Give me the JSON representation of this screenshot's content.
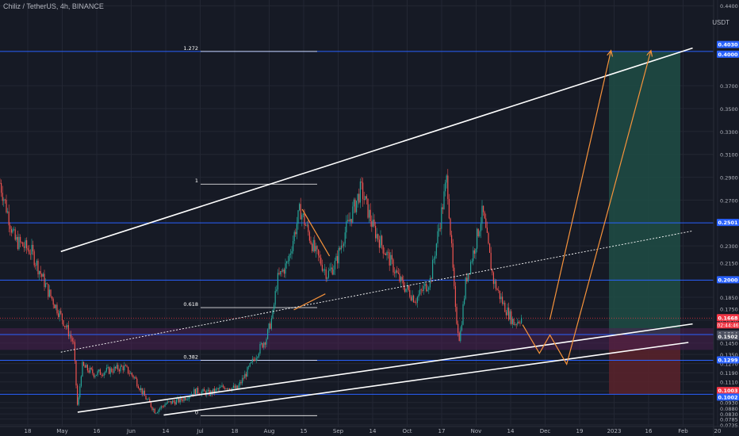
{
  "header": {
    "title": "Chiliz / TetherUS, 4h, BINANCE"
  },
  "axis": {
    "currency": "USDT"
  },
  "colors": {
    "background": "#161a25",
    "grid": "#232733",
    "up": "#26a69a",
    "down": "#ef5350",
    "hline": "#2962ff",
    "channel": "#ffffff",
    "projection": "#f7933b",
    "fib": "#ffffff",
    "profit_zone": "#1e4d45",
    "loss_zone": "#5a232b",
    "support_band": "#4a2150",
    "price_tag": "#f23645",
    "text": "#b2b5be"
  },
  "chart_data": {
    "type": "candlestick",
    "title": "Chiliz / TetherUS, 4h, BINANCE",
    "x_tick_labels": [
      "18",
      "May",
      "16",
      "Jun",
      "14",
      "Jul",
      "18",
      "Aug",
      "15",
      "Sep",
      "14",
      "Oct",
      "17",
      "Nov",
      "14",
      "Dec",
      "19",
      "2023",
      "16",
      "Feb",
      "20"
    ],
    "y_tick_labels": [
      "0.4400",
      "0.3700",
      "0.3500",
      "0.3300",
      "0.3100",
      "0.2900",
      "0.2700",
      "0.2300",
      "0.2150",
      "0.1850",
      "0.1750",
      "0.1650",
      "0.1450",
      "0.1350",
      "0.1270",
      "0.1190",
      "0.1110",
      "0.1030",
      "0.0930",
      "0.0880",
      "0.0830",
      "0.0785",
      "0.0735"
    ],
    "ylim": [
      0.072,
      0.445
    ],
    "price_levels": [
      {
        "label": "0.4030",
        "value": 0.403
      },
      {
        "label": "0.4000",
        "value": 0.4
      },
      {
        "label": "0.2501",
        "value": 0.2501
      },
      {
        "label": "0.2000",
        "value": 0.2
      },
      {
        "label": "0.1668",
        "value": 0.1668
      },
      {
        "label": "0.1524",
        "value": 0.1524
      },
      {
        "label": "0.1502",
        "value": 0.1502
      },
      {
        "label": "0.1299",
        "value": 0.1299
      },
      {
        "label": "0.1003",
        "value": 0.1003
      },
      {
        "label": "0.1002",
        "value": 0.1002
      }
    ],
    "countdown": "02:44:46",
    "fib_levels": [
      {
        "label": "1.272",
        "value": 0.4
      },
      {
        "label": "1",
        "value": 0.284
      },
      {
        "label": "0.618",
        "value": 0.176
      },
      {
        "label": "0.382",
        "value": 0.1299
      },
      {
        "label": "0",
        "value": 0.0815
      }
    ],
    "trade_setup": {
      "entry": 0.1524,
      "target": 0.4,
      "stop": 0.1003
    },
    "price_path": [
      [
        "2022-04-05",
        0.285
      ],
      [
        "2022-04-12",
        0.235
      ],
      [
        "2022-04-20",
        0.225
      ],
      [
        "2022-04-28",
        0.19
      ],
      [
        "2022-05-05",
        0.165
      ],
      [
        "2022-05-10",
        0.145
      ],
      [
        "2022-05-12",
        0.087
      ],
      [
        "2022-05-14",
        0.125
      ],
      [
        "2022-05-20",
        0.118
      ],
      [
        "2022-05-27",
        0.121
      ],
      [
        "2022-06-03",
        0.124
      ],
      [
        "2022-06-08",
        0.115
      ],
      [
        "2022-06-13",
        0.098
      ],
      [
        "2022-06-18",
        0.085
      ],
      [
        "2022-06-23",
        0.092
      ],
      [
        "2022-06-30",
        0.095
      ],
      [
        "2022-07-07",
        0.103
      ],
      [
        "2022-07-14",
        0.101
      ],
      [
        "2022-07-21",
        0.107
      ],
      [
        "2022-07-27",
        0.105
      ],
      [
        "2022-08-02",
        0.124
      ],
      [
        "2022-08-06",
        0.138
      ],
      [
        "2022-08-10",
        0.15
      ],
      [
        "2022-08-13",
        0.17
      ],
      [
        "2022-08-15",
        0.2
      ],
      [
        "2022-08-20",
        0.215
      ],
      [
        "2022-08-26",
        0.262
      ],
      [
        "2022-09-02",
        0.225
      ],
      [
        "2022-09-08",
        0.205
      ],
      [
        "2022-09-12",
        0.215
      ],
      [
        "2022-09-16",
        0.24
      ],
      [
        "2022-09-24",
        0.28
      ],
      [
        "2022-09-30",
        0.245
      ],
      [
        "2022-10-07",
        0.22
      ],
      [
        "2022-10-13",
        0.198
      ],
      [
        "2022-10-20",
        0.183
      ],
      [
        "2022-10-27",
        0.2
      ],
      [
        "2022-11-01",
        0.255
      ],
      [
        "2022-11-04",
        0.29
      ],
      [
        "2022-11-08",
        0.172
      ],
      [
        "2022-11-10",
        0.148
      ],
      [
        "2022-11-13",
        0.2
      ],
      [
        "2022-11-17",
        0.228
      ],
      [
        "2022-11-21",
        0.26
      ],
      [
        "2022-11-26",
        0.2
      ],
      [
        "2022-12-01",
        0.178
      ],
      [
        "2022-12-06",
        0.162
      ],
      [
        "2022-12-10",
        0.168
      ]
    ],
    "x_range": [
      "2022-04-05",
      "2023-03-11"
    ],
    "channel_lines": [
      {
        "name": "upper",
        "points": [
          [
            "2022-05-04",
            0.225
          ],
          [
            "2023-03-01",
            0.403
          ]
        ]
      },
      {
        "name": "middle",
        "dashed": true,
        "points": [
          [
            "2022-05-04",
            0.137
          ],
          [
            "2023-03-01",
            0.243
          ]
        ]
      },
      {
        "name": "lower",
        "points": [
          [
            "2022-05-12",
            0.0845
          ],
          [
            "2023-03-01",
            0.1617
          ]
        ]
      },
      {
        "name": "lower_parallel",
        "points": [
          [
            "2022-06-22",
            0.082
          ],
          [
            "2023-02-27",
            0.1455
          ]
        ]
      }
    ],
    "projections": [
      {
        "name": "path_a",
        "points": [
          [
            "2022-12-23",
            0.1655
          ],
          [
            "2023-01-21",
            0.4
          ]
        ]
      },
      {
        "name": "path_b",
        "points": [
          [
            "2022-12-10",
            0.161
          ],
          [
            "2022-12-18",
            0.136
          ],
          [
            "2022-12-23",
            0.152
          ],
          [
            "2022-12-31",
            0.1265
          ],
          [
            "2023-02-09",
            0.4
          ]
        ]
      }
    ],
    "triangle": [
      [
        "2022-08-27",
        0.262
      ],
      [
        "2022-09-09",
        0.221
      ],
      [
        "2022-08-23",
        0.174
      ],
      [
        "2022-09-07",
        0.188
      ]
    ]
  }
}
